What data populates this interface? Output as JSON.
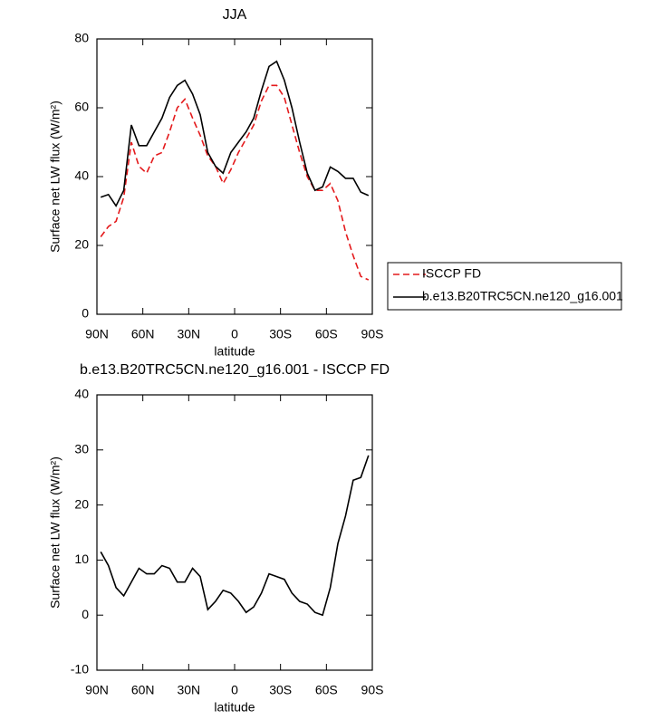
{
  "chart_data": [
    {
      "type": "line",
      "title": "JJA",
      "xlabel": "latitude",
      "ylabel": "Surface net LW flux (W/m²)",
      "x": [
        87.5,
        82.5,
        77.5,
        72.5,
        67.5,
        62.5,
        57.5,
        52.5,
        47.5,
        42.5,
        37.5,
        32.5,
        27.5,
        22.5,
        17.5,
        12.5,
        7.5,
        2.5,
        -2.5,
        -7.5,
        -12.5,
        -17.5,
        -22.5,
        -27.5,
        -32.5,
        -37.5,
        -42.5,
        -47.5,
        -52.5,
        -57.5,
        -62.5,
        -67.5,
        -72.5,
        -77.5,
        -82.5,
        -87.5
      ],
      "series": [
        {
          "name": "ISCCP FD",
          "color": "#e41a1c",
          "style": "dashed",
          "values": [
            22.5,
            25.5,
            27,
            34,
            50,
            43,
            41,
            46,
            47,
            53,
            60,
            62.5,
            57,
            52,
            46,
            43,
            38,
            42,
            47,
            51,
            55,
            62,
            66.5,
            66.5,
            63,
            55,
            47,
            40,
            36,
            36,
            38,
            33,
            24,
            17,
            11,
            10
          ]
        },
        {
          "name": "b.e13.B20TRC5CN.ne120_g16.001",
          "color": "#000000",
          "style": "solid",
          "values": [
            34,
            34.8,
            31.5,
            36,
            55,
            49,
            49,
            53,
            57,
            63,
            66.5,
            68,
            64,
            58,
            47,
            43,
            41,
            47,
            50,
            53,
            57,
            65,
            72,
            73.5,
            68,
            60,
            50,
            41,
            36,
            37,
            42.8,
            41.5,
            39.5,
            39.5,
            35.5,
            34.5
          ]
        }
      ],
      "xlim": [
        90,
        -90
      ],
      "xticks": [
        {
          "value": 90,
          "label": "90N"
        },
        {
          "value": 60,
          "label": "60N"
        },
        {
          "value": 30,
          "label": "30N"
        },
        0,
        {
          "value": -30,
          "label": "30S"
        },
        {
          "value": -60,
          "label": "60S"
        },
        {
          "value": -90,
          "label": "90S"
        }
      ],
      "ylim": [
        0,
        80
      ],
      "yticks": [
        0,
        20,
        40,
        60,
        80
      ],
      "legend": "outside right"
    },
    {
      "type": "line",
      "title": "b.e13.B20TRC5CN.ne120_g16.001 - ISCCP FD",
      "xlabel": "latitude",
      "ylabel": "Surface net LW flux (W/m²)",
      "x": [
        87.5,
        82.5,
        77.5,
        72.5,
        67.5,
        62.5,
        57.5,
        52.5,
        47.5,
        42.5,
        37.5,
        32.5,
        27.5,
        22.5,
        17.5,
        12.5,
        7.5,
        2.5,
        -2.5,
        -7.5,
        -12.5,
        -17.5,
        -22.5,
        -27.5,
        -32.5,
        -37.5,
        -42.5,
        -47.5,
        -52.5,
        -57.5,
        -62.5,
        -67.5,
        -72.5,
        -77.5,
        -82.5,
        -87.5
      ],
      "series": [
        {
          "color": "#000000",
          "style": "solid",
          "values": [
            11.5,
            9,
            5,
            3.5,
            6,
            8.5,
            7.5,
            7.5,
            9,
            8.5,
            6,
            6,
            8.5,
            7,
            1,
            2.5,
            4.5,
            4,
            2.5,
            0.5,
            1.5,
            4,
            7.5,
            7,
            6.5,
            4,
            2.5,
            2,
            0.5,
            0,
            5,
            13,
            18,
            24.5,
            25,
            29
          ]
        }
      ],
      "xlim": [
        90,
        -90
      ],
      "xticks": [
        {
          "value": 90,
          "label": "90N"
        },
        {
          "value": 60,
          "label": "60N"
        },
        {
          "value": 30,
          "label": "30N"
        },
        0,
        {
          "value": -30,
          "label": "30S"
        },
        {
          "value": -60,
          "label": "60S"
        },
        {
          "value": -90,
          "label": "90S"
        }
      ],
      "ylim": [
        -10,
        40
      ],
      "yticks": [
        -10,
        0,
        10,
        20,
        30,
        40
      ]
    }
  ]
}
